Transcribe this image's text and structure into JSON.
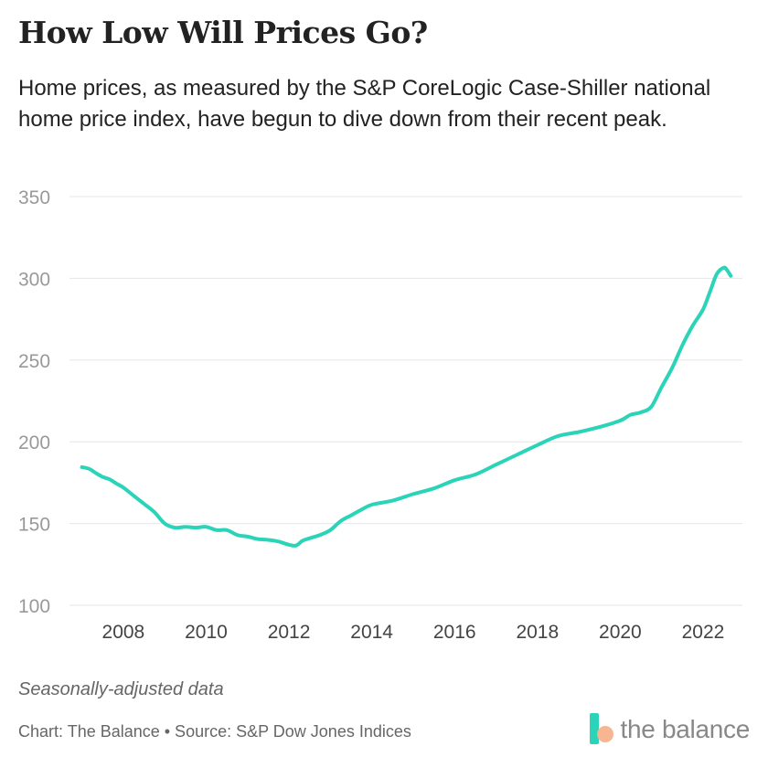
{
  "title": "How Low Will Prices Go?",
  "subtitle": "Home prices, as measured by the S&P CoreLogic Case-Shiller national home price index, have begun to dive down from their recent peak.",
  "note": "Seasonally-adjusted data",
  "credit": "Chart: The Balance • Source: S&P Dow Jones Indices",
  "logo": {
    "text": "the balance",
    "colors": {
      "bar": "#2bd4b8",
      "dot": "#f7b28b"
    }
  },
  "chart_data": {
    "type": "line",
    "title": "How Low Will Prices Go?",
    "xlabel": "",
    "ylabel": "",
    "xlim": [
      2006.7,
      2022.95
    ],
    "ylim": [
      100,
      350
    ],
    "yticks": [
      100,
      150,
      200,
      250,
      300,
      350
    ],
    "xticks": [
      2008,
      2010,
      2012,
      2014,
      2016,
      2018,
      2020,
      2022
    ],
    "grid": true,
    "line_color": "#2bd4b8",
    "series": [
      {
        "name": "S&P CoreLogic Case-Shiller U.S. National Home Price Index",
        "x": [
          2007.0,
          2007.17,
          2007.33,
          2007.5,
          2007.67,
          2007.83,
          2008.0,
          2008.25,
          2008.5,
          2008.75,
          2009.0,
          2009.25,
          2009.5,
          2009.75,
          2010.0,
          2010.25,
          2010.5,
          2010.75,
          2011.0,
          2011.25,
          2011.5,
          2011.75,
          2012.0,
          2012.17,
          2012.33,
          2012.5,
          2012.75,
          2013.0,
          2013.25,
          2013.5,
          2013.75,
          2014.0,
          2014.5,
          2015.0,
          2015.5,
          2016.0,
          2016.5,
          2017.0,
          2017.5,
          2018.0,
          2018.5,
          2019.0,
          2019.5,
          2020.0,
          2020.25,
          2020.5,
          2020.75,
          2021.0,
          2021.25,
          2021.5,
          2021.75,
          2022.0,
          2022.17,
          2022.33,
          2022.5,
          2022.58,
          2022.67
        ],
        "values": [
          184.5,
          183.5,
          181.0,
          178.5,
          177.0,
          174.5,
          172.0,
          167.0,
          162.0,
          157.0,
          150.0,
          147.5,
          148.0,
          147.5,
          148.0,
          146.0,
          146.0,
          143.0,
          142.0,
          140.5,
          140.0,
          139.0,
          137.0,
          136.5,
          139.5,
          141.0,
          143.0,
          146.0,
          151.5,
          155.0,
          158.5,
          161.5,
          164.0,
          168.0,
          171.5,
          176.5,
          180.0,
          186.0,
          192.0,
          198.0,
          203.5,
          206.0,
          209.0,
          213.0,
          216.5,
          218.0,
          221.5,
          233.5,
          245.0,
          259.0,
          271.0,
          281.0,
          292.0,
          302.5,
          306.5,
          305.0,
          301.5
        ]
      }
    ]
  }
}
